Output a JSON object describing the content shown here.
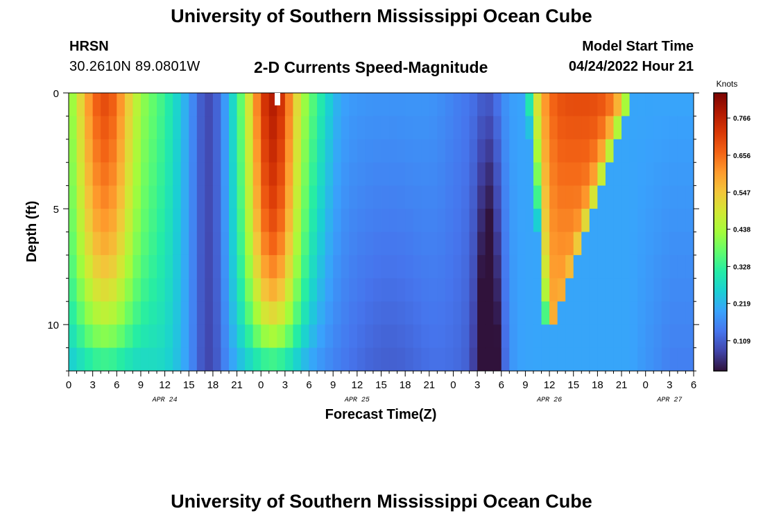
{
  "header": {
    "title": "University of Southern Mississippi Ocean Cube",
    "station": "HRSN",
    "coords": "30.2610N  89.0801W",
    "subtitle": "2-D Currents Speed-Magnitude",
    "model_start_label": "Model Start Time",
    "model_start_value": "04/24/2022 Hour 21"
  },
  "footer": {
    "title": "University of Southern Mississippi Ocean Cube"
  },
  "chart_data": {
    "type": "heatmap",
    "title": "2-D Currents Speed-Magnitude",
    "xlabel": "Forecast Time(Z)",
    "ylabel": "Depth (ft)",
    "x_tick_labels": [
      "0",
      "3",
      "6",
      "9",
      "12",
      "15",
      "18",
      "21",
      "0",
      "3",
      "6",
      "9",
      "12",
      "15",
      "18",
      "21",
      "0",
      "3",
      "6",
      "9",
      "12",
      "15",
      "18",
      "21",
      "0",
      "3",
      "6"
    ],
    "x_hours": [
      0,
      3,
      6,
      9,
      12,
      15,
      18,
      21,
      24,
      27,
      30,
      33,
      36,
      39,
      42,
      45,
      48,
      51,
      54,
      57,
      60,
      63,
      66,
      69,
      72,
      75,
      78
    ],
    "date_labels": [
      {
        "label": "APR 24",
        "hour": 12
      },
      {
        "label": "APR 25",
        "hour": 36
      },
      {
        "label": "APR 26",
        "hour": 60
      },
      {
        "label": "APR 27",
        "hour": 75
      }
    ],
    "y_ticks": [
      0,
      5,
      10
    ],
    "y_tick_labels": [
      "0",
      "5",
      "10"
    ],
    "ylim": [
      0,
      12
    ],
    "xlim": [
      0,
      78
    ],
    "colorbar": {
      "label": "Knots",
      "tick_values": [
        0.109,
        0.219,
        0.328,
        0.438,
        0.547,
        0.656,
        0.766
      ],
      "tick_labels": [
        "0.109",
        "0.219",
        "0.328",
        "0.438",
        "0.547",
        "0.656",
        "0.766"
      ],
      "range": [
        0.02,
        0.84
      ]
    },
    "colors": [
      "#30123b",
      "#4145ab",
      "#4675ed",
      "#39a2fc",
      "#1bcfd4",
      "#24eca6",
      "#61fc6c",
      "#a4fc3b",
      "#d1e834",
      "#f3c63a",
      "#fe9b2d",
      "#f36315",
      "#d93806",
      "#b11901",
      "#7a0402"
    ],
    "series_summary": [
      {
        "hour_range": [
          0,
          10
        ],
        "pattern": "high 0.6-0.75 at surface to mid depth"
      },
      {
        "hour_range": [
          16,
          21
        ],
        "pattern": "low 0.05-0.15 full depth"
      },
      {
        "hour_range": [
          21,
          30
        ],
        "pattern": "high 0.7-0.82 peak near hour 24 surface"
      },
      {
        "hour_range": [
          33,
          52
        ],
        "pattern": "low-moderate 0.1-0.3, weakest at depth"
      },
      {
        "hour_range": [
          52,
          54
        ],
        "pattern": "minimum 0.02-0.05 at depth"
      },
      {
        "hour_range": [
          56,
          72
        ],
        "pattern": "high 0.6-0.8 near surface, decreasing with depth"
      }
    ]
  }
}
